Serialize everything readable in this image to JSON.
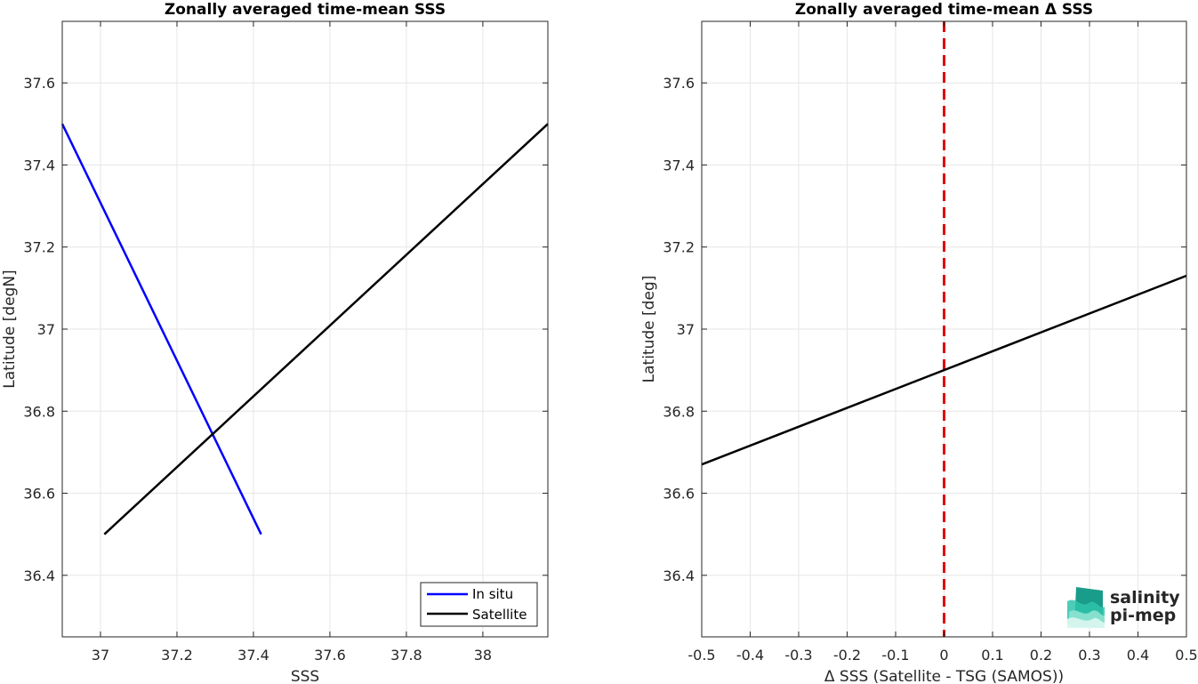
{
  "chart_data": [
    {
      "type": "line",
      "title": "Zonally averaged time-mean SSS",
      "xlabel": "SSS",
      "ylabel": "Latitude [degN]",
      "xlim": [
        36.9,
        38.17
      ],
      "ylim": [
        36.25,
        37.75
      ],
      "xticks": [
        37,
        37.2,
        37.4,
        37.6,
        37.8,
        38
      ],
      "xtick_labels": [
        "37",
        "37.2",
        "37.4",
        "37.6",
        "37.8",
        "38"
      ],
      "yticks": [
        36.4,
        36.6,
        36.8,
        37,
        37.2,
        37.4,
        37.6
      ],
      "ytick_labels": [
        "36.4",
        "36.6",
        "36.8",
        "37",
        "37.2",
        "37.4",
        "37.6"
      ],
      "grid": true,
      "legend_position": "bottom-right",
      "series": [
        {
          "name": "In situ",
          "color": "#0000ff",
          "x": [
            36.9,
            37.42
          ],
          "y": [
            37.5,
            36.5
          ]
        },
        {
          "name": "Satellite",
          "color": "#000000",
          "x": [
            37.01,
            38.17
          ],
          "y": [
            36.5,
            37.5
          ]
        }
      ]
    },
    {
      "type": "line",
      "title": "Zonally averaged time-mean Δ SSS",
      "xlabel": "Δ SSS (Satellite - TSG (SAMOS))",
      "ylabel": "Latitude [deg]",
      "xlim": [
        -0.5,
        0.5
      ],
      "ylim": [
        36.25,
        37.75
      ],
      "xticks": [
        -0.5,
        -0.4,
        -0.3,
        -0.2,
        -0.1,
        0,
        0.1,
        0.2,
        0.3,
        0.4,
        0.5
      ],
      "xtick_labels": [
        "-0.5",
        "-0.4",
        "-0.3",
        "-0.2",
        "-0.1",
        "0",
        "0.1",
        "0.2",
        "0.3",
        "0.4",
        "0.5"
      ],
      "yticks": [
        36.4,
        36.6,
        36.8,
        37,
        37.2,
        37.4,
        37.6
      ],
      "ytick_labels": [
        "36.4",
        "36.6",
        "36.8",
        "37",
        "37.2",
        "37.4",
        "37.6"
      ],
      "grid": true,
      "reference_line": {
        "x": 0,
        "color": "#e00000",
        "style": "dashed"
      },
      "series": [
        {
          "color": "#000000",
          "x": [
            -0.5,
            0.5
          ],
          "y": [
            36.67,
            37.13
          ]
        }
      ]
    }
  ],
  "logo": {
    "line1": "salinity",
    "line2": "pi-mep",
    "color1": "#23b5a0",
    "color2": "#1f6e63"
  }
}
